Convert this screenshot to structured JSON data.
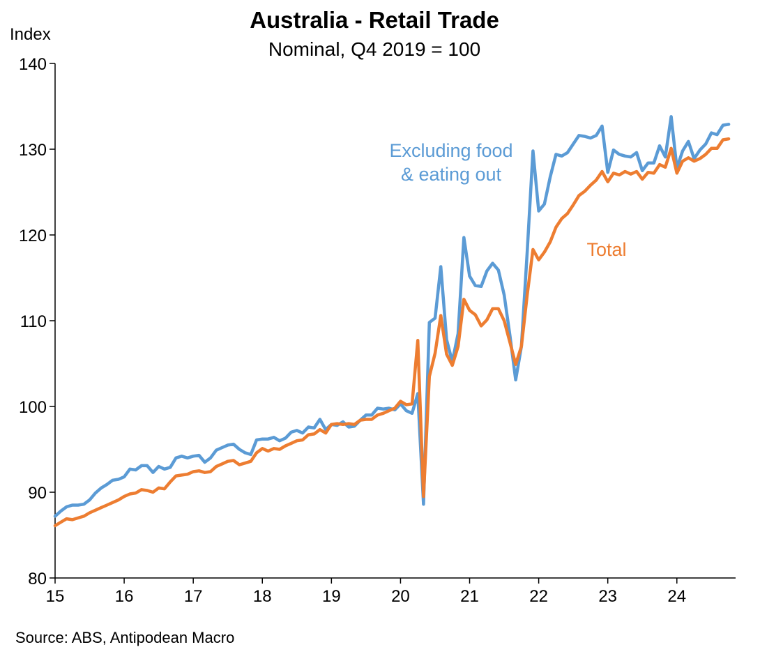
{
  "chart_data": {
    "type": "line",
    "title": "Australia - Retail Trade",
    "subtitle": "Nominal, Q4 2019 = 100",
    "ylabel": "Index",
    "ylim": [
      80,
      140
    ],
    "yticks": [
      80,
      90,
      100,
      110,
      120,
      130,
      140
    ],
    "xlim": [
      15,
      24.85
    ],
    "xticks": [
      15,
      16,
      17,
      18,
      19,
      20,
      21,
      22,
      23,
      24
    ],
    "xtick_labels": [
      "15",
      "16",
      "17",
      "18",
      "19",
      "20",
      "21",
      "22",
      "23",
      "24"
    ],
    "source": "Source: ABS, Antipodean Macro",
    "grid": false,
    "annotations": [
      {
        "series": "excl",
        "lines": [
          "Excluding food",
          "& eating out"
        ]
      },
      {
        "series": "total",
        "lines": [
          "Total"
        ]
      }
    ],
    "series": [
      {
        "key": "excl",
        "color": "#5b9bd5",
        "points": [
          [
            15.0,
            87.2
          ],
          [
            15.083,
            87.8
          ],
          [
            15.167,
            88.3
          ],
          [
            15.25,
            88.5
          ],
          [
            15.333,
            88.5
          ],
          [
            15.417,
            88.6
          ],
          [
            15.5,
            89.1
          ],
          [
            15.583,
            89.9
          ],
          [
            15.667,
            90.5
          ],
          [
            15.75,
            90.9
          ],
          [
            15.833,
            91.4
          ],
          [
            15.917,
            91.5
          ],
          [
            16.0,
            91.8
          ],
          [
            16.083,
            92.7
          ],
          [
            16.167,
            92.6
          ],
          [
            16.25,
            93.1
          ],
          [
            16.333,
            93.1
          ],
          [
            16.417,
            92.3
          ],
          [
            16.5,
            93.0
          ],
          [
            16.583,
            92.7
          ],
          [
            16.667,
            92.9
          ],
          [
            16.75,
            94.0
          ],
          [
            16.833,
            94.2
          ],
          [
            16.917,
            94.0
          ],
          [
            17.0,
            94.2
          ],
          [
            17.083,
            94.3
          ],
          [
            17.167,
            93.5
          ],
          [
            17.25,
            94.0
          ],
          [
            17.333,
            94.9
          ],
          [
            17.417,
            95.2
          ],
          [
            17.5,
            95.5
          ],
          [
            17.583,
            95.6
          ],
          [
            17.667,
            95.0
          ],
          [
            17.75,
            94.6
          ],
          [
            17.833,
            94.4
          ],
          [
            17.917,
            96.1
          ],
          [
            18.0,
            96.2
          ],
          [
            18.083,
            96.2
          ],
          [
            18.167,
            96.4
          ],
          [
            18.25,
            96.0
          ],
          [
            18.333,
            96.3
          ],
          [
            18.417,
            97.0
          ],
          [
            18.5,
            97.2
          ],
          [
            18.583,
            96.9
          ],
          [
            18.667,
            97.6
          ],
          [
            18.75,
            97.5
          ],
          [
            18.833,
            98.5
          ],
          [
            18.917,
            97.3
          ],
          [
            19.0,
            97.9
          ],
          [
            19.083,
            97.8
          ],
          [
            19.167,
            98.2
          ],
          [
            19.25,
            97.6
          ],
          [
            19.333,
            97.7
          ],
          [
            19.417,
            98.4
          ],
          [
            19.5,
            99.0
          ],
          [
            19.583,
            99.0
          ],
          [
            19.667,
            99.8
          ],
          [
            19.75,
            99.7
          ],
          [
            19.833,
            99.8
          ],
          [
            19.917,
            99.6
          ],
          [
            20.0,
            100.3
          ],
          [
            20.083,
            99.5
          ],
          [
            20.167,
            99.2
          ],
          [
            20.25,
            101.5
          ],
          [
            20.333,
            88.6
          ],
          [
            20.417,
            109.8
          ],
          [
            20.5,
            110.3
          ],
          [
            20.583,
            116.3
          ],
          [
            20.667,
            107.8
          ],
          [
            20.75,
            105.2
          ],
          [
            20.833,
            108.5
          ],
          [
            20.917,
            119.7
          ],
          [
            21.0,
            115.2
          ],
          [
            21.083,
            114.1
          ],
          [
            21.167,
            114.0
          ],
          [
            21.25,
            115.8
          ],
          [
            21.333,
            116.7
          ],
          [
            21.417,
            115.9
          ],
          [
            21.5,
            113.0
          ],
          [
            21.583,
            108.3
          ],
          [
            21.667,
            103.1
          ],
          [
            21.75,
            107.0
          ],
          [
            21.833,
            118.0
          ],
          [
            21.917,
            129.8
          ],
          [
            22.0,
            122.8
          ],
          [
            22.083,
            123.6
          ],
          [
            22.167,
            126.8
          ],
          [
            22.25,
            129.4
          ],
          [
            22.333,
            129.2
          ],
          [
            22.417,
            129.6
          ],
          [
            22.5,
            130.6
          ],
          [
            22.583,
            131.6
          ],
          [
            22.667,
            131.5
          ],
          [
            22.75,
            131.3
          ],
          [
            22.833,
            131.6
          ],
          [
            22.917,
            132.7
          ],
          [
            23.0,
            127.3
          ],
          [
            23.083,
            129.9
          ],
          [
            23.167,
            129.4
          ],
          [
            23.25,
            129.2
          ],
          [
            23.333,
            129.1
          ],
          [
            23.417,
            129.6
          ],
          [
            23.5,
            127.5
          ],
          [
            23.583,
            128.4
          ],
          [
            23.667,
            128.4
          ],
          [
            23.75,
            130.4
          ],
          [
            23.833,
            129.1
          ],
          [
            23.917,
            133.8
          ],
          [
            24.0,
            127.8
          ],
          [
            24.083,
            129.8
          ],
          [
            24.167,
            130.9
          ],
          [
            24.25,
            128.9
          ],
          [
            24.333,
            129.9
          ],
          [
            24.417,
            130.6
          ],
          [
            24.5,
            131.9
          ],
          [
            24.583,
            131.7
          ],
          [
            24.667,
            132.8
          ],
          [
            24.75,
            132.9
          ]
        ]
      },
      {
        "key": "total",
        "color": "#ed7d31",
        "points": [
          [
            15.0,
            86.1
          ],
          [
            15.083,
            86.5
          ],
          [
            15.167,
            86.9
          ],
          [
            15.25,
            86.8
          ],
          [
            15.333,
            87.0
          ],
          [
            15.417,
            87.2
          ],
          [
            15.5,
            87.6
          ],
          [
            15.583,
            87.9
          ],
          [
            15.667,
            88.2
          ],
          [
            15.75,
            88.5
          ],
          [
            15.833,
            88.8
          ],
          [
            15.917,
            89.1
          ],
          [
            16.0,
            89.5
          ],
          [
            16.083,
            89.8
          ],
          [
            16.167,
            89.9
          ],
          [
            16.25,
            90.3
          ],
          [
            16.333,
            90.2
          ],
          [
            16.417,
            90.0
          ],
          [
            16.5,
            90.5
          ],
          [
            16.583,
            90.4
          ],
          [
            16.667,
            91.2
          ],
          [
            16.75,
            91.9
          ],
          [
            16.833,
            92.0
          ],
          [
            16.917,
            92.1
          ],
          [
            17.0,
            92.4
          ],
          [
            17.083,
            92.5
          ],
          [
            17.167,
            92.3
          ],
          [
            17.25,
            92.4
          ],
          [
            17.333,
            93.0
          ],
          [
            17.417,
            93.3
          ],
          [
            17.5,
            93.6
          ],
          [
            17.583,
            93.7
          ],
          [
            17.667,
            93.2
          ],
          [
            17.75,
            93.4
          ],
          [
            17.833,
            93.6
          ],
          [
            17.917,
            94.6
          ],
          [
            18.0,
            95.1
          ],
          [
            18.083,
            94.8
          ],
          [
            18.167,
            95.1
          ],
          [
            18.25,
            95.0
          ],
          [
            18.333,
            95.4
          ],
          [
            18.417,
            95.7
          ],
          [
            18.5,
            96.0
          ],
          [
            18.583,
            96.1
          ],
          [
            18.667,
            96.7
          ],
          [
            18.75,
            96.8
          ],
          [
            18.833,
            97.3
          ],
          [
            18.917,
            96.9
          ],
          [
            19.0,
            97.9
          ],
          [
            19.083,
            98.0
          ],
          [
            19.167,
            97.9
          ],
          [
            19.25,
            98.0
          ],
          [
            19.333,
            97.9
          ],
          [
            19.417,
            98.4
          ],
          [
            19.5,
            98.5
          ],
          [
            19.583,
            98.5
          ],
          [
            19.667,
            99.0
          ],
          [
            19.75,
            99.2
          ],
          [
            19.833,
            99.5
          ],
          [
            19.917,
            99.8
          ],
          [
            20.0,
            100.6
          ],
          [
            20.083,
            100.2
          ],
          [
            20.167,
            100.3
          ],
          [
            20.25,
            107.7
          ],
          [
            20.333,
            89.5
          ],
          [
            20.417,
            103.5
          ],
          [
            20.5,
            106.2
          ],
          [
            20.583,
            110.6
          ],
          [
            20.667,
            106.1
          ],
          [
            20.75,
            104.8
          ],
          [
            20.833,
            107.0
          ],
          [
            20.917,
            112.5
          ],
          [
            21.0,
            111.2
          ],
          [
            21.083,
            110.7
          ],
          [
            21.167,
            109.4
          ],
          [
            21.25,
            110.1
          ],
          [
            21.333,
            111.4
          ],
          [
            21.417,
            111.4
          ],
          [
            21.5,
            110.0
          ],
          [
            21.583,
            107.5
          ],
          [
            21.667,
            104.9
          ],
          [
            21.75,
            107.0
          ],
          [
            21.833,
            113.0
          ],
          [
            21.917,
            118.3
          ],
          [
            22.0,
            117.1
          ],
          [
            22.083,
            118.0
          ],
          [
            22.167,
            119.2
          ],
          [
            22.25,
            120.9
          ],
          [
            22.333,
            121.9
          ],
          [
            22.417,
            122.5
          ],
          [
            22.5,
            123.5
          ],
          [
            22.583,
            124.6
          ],
          [
            22.667,
            125.1
          ],
          [
            22.75,
            125.8
          ],
          [
            22.833,
            126.4
          ],
          [
            22.917,
            127.4
          ],
          [
            23.0,
            126.2
          ],
          [
            23.083,
            127.2
          ],
          [
            23.167,
            127.0
          ],
          [
            23.25,
            127.4
          ],
          [
            23.333,
            127.1
          ],
          [
            23.417,
            127.4
          ],
          [
            23.5,
            126.5
          ],
          [
            23.583,
            127.3
          ],
          [
            23.667,
            127.2
          ],
          [
            23.75,
            128.2
          ],
          [
            23.833,
            127.9
          ],
          [
            23.917,
            130.1
          ],
          [
            24.0,
            127.2
          ],
          [
            24.083,
            128.6
          ],
          [
            24.167,
            129.0
          ],
          [
            24.25,
            128.6
          ],
          [
            24.333,
            128.9
          ],
          [
            24.417,
            129.4
          ],
          [
            24.5,
            130.1
          ],
          [
            24.583,
            130.1
          ],
          [
            24.667,
            131.1
          ],
          [
            24.75,
            131.2
          ]
        ]
      }
    ]
  }
}
